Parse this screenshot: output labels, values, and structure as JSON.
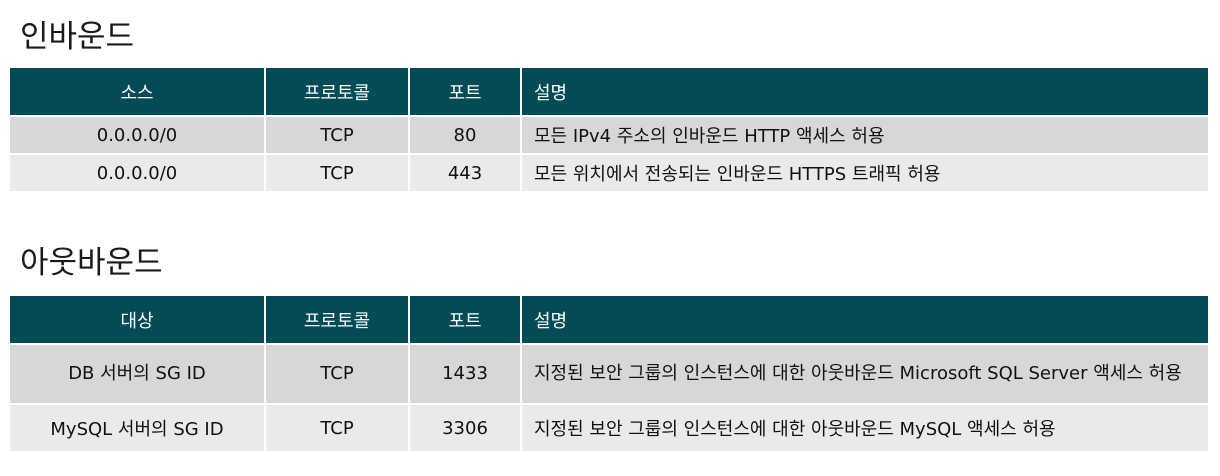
{
  "inbound": {
    "title": "인바운드",
    "headers": [
      "소스",
      "프로토콜",
      "포트",
      "설명"
    ],
    "rows": [
      [
        "0.0.0.0/0",
        "TCP",
        "80",
        "모든 IPv4 주소의 인바운드 HTTP 액세스 허용"
      ],
      [
        "0.0.0.0/0",
        "TCP",
        "443",
        "모든 위치에서 전송되는 인바운드 HTTPS 트래픽 허용"
      ]
    ]
  },
  "outbound": {
    "title": "아웃바운드",
    "headers": [
      "대상",
      "프로토콜",
      "포트",
      "설명"
    ],
    "rows": [
      [
        "DB 서버의 SG ID",
        "TCP",
        "1433",
        "지정된 보안 그룹의 인스턴스에 대한 아웃바운드 Microsoft SQL Server 액세스 허용"
      ],
      [
        "MySQL 서버의 SG ID",
        "TCP",
        "3306",
        "지정된 보안 그룹의 인스턴스에 대한 아웃바운드 MySQL 액세스 허용"
      ]
    ]
  },
  "colors": {
    "header_bg": "#024b57",
    "row_odd": "#d5d7d8",
    "row_even": "#e9eaeb"
  }
}
